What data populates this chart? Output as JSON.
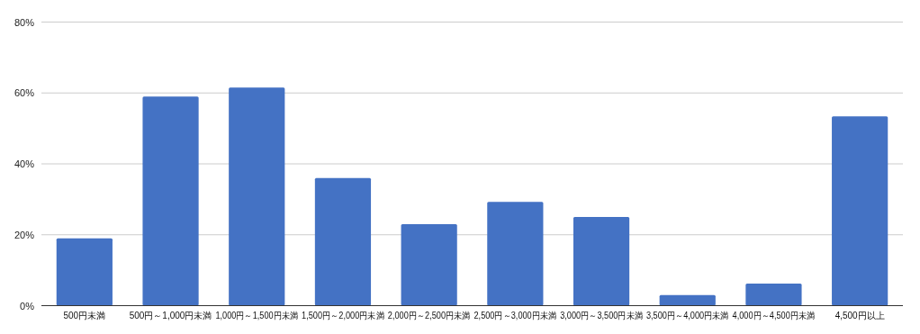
{
  "chart_data": {
    "type": "bar",
    "categories": [
      "500円未満",
      "500円～1,000円未満",
      "1,000円～1,500円未満",
      "1,500円～2,000円未満",
      "2,000円～2,500円未満",
      "2,500円～3,000円未満",
      "3,000円～3,500円未満",
      "3,500円～4,000円未満",
      "4,000円～4,500円未満",
      "4,500円以上"
    ],
    "values": [
      19,
      59,
      61.5,
      36,
      23,
      29.3,
      25,
      3,
      6.2,
      53.4
    ],
    "color": "#4472c4",
    "ylim": [
      0,
      80
    ],
    "yticks": [
      {
        "value": 0,
        "label": "0%"
      },
      {
        "value": 20,
        "label": "20%"
      },
      {
        "value": 40,
        "label": "40%"
      },
      {
        "value": 60,
        "label": "60%"
      },
      {
        "value": 80,
        "label": "80%"
      }
    ],
    "grid": "y"
  }
}
